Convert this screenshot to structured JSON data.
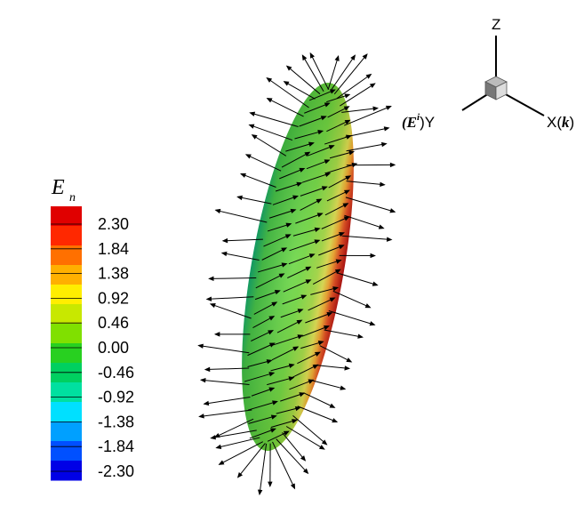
{
  "legend": {
    "title": "E",
    "subscript": "n",
    "colors": [
      "#0000e6",
      "#0050ff",
      "#00a0ff",
      "#00e0ff",
      "#00e0a0",
      "#00d060",
      "#28d020",
      "#80e000",
      "#c8e800",
      "#ffee00",
      "#ffb000",
      "#ff7000",
      "#ff2800",
      "#e00000"
    ],
    "ticks": [
      "2.30",
      "1.84",
      "1.38",
      "0.92",
      "0.46",
      "0.00",
      "-0.46",
      "-0.92",
      "-1.38",
      "-1.84",
      "-2.30"
    ]
  },
  "axes": {
    "z_label": "Z",
    "y_label": "Y",
    "y_prefix": "(E",
    "y_superscript": "i",
    "y_suffix": ")",
    "x_label": "X(",
    "x_bold": "k",
    "x_suffix": ")"
  }
}
